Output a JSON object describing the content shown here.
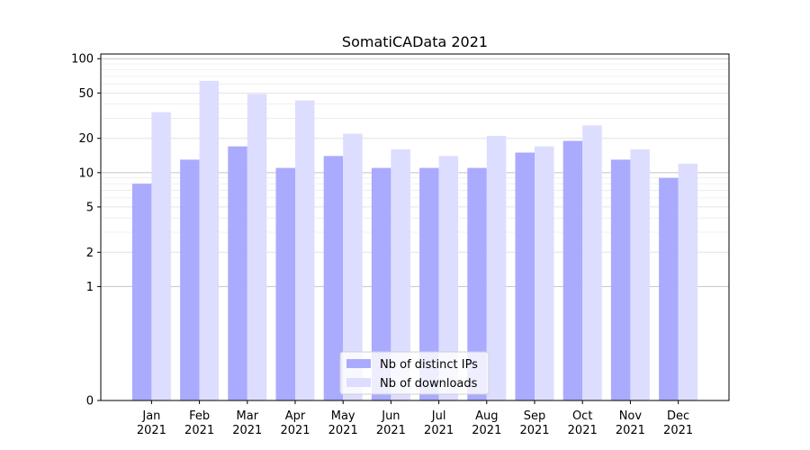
{
  "chart_data": {
    "type": "bar",
    "title": "SomatiCAData 2021",
    "xlabel": "",
    "ylabel": "",
    "y_scale": "symlog",
    "ylim": [
      0,
      110
    ],
    "yticks": [
      0,
      1,
      2,
      5,
      10,
      20,
      50,
      100
    ],
    "ytick_labels": [
      "0",
      "1",
      "2",
      "5",
      "10",
      "20",
      "50",
      "100"
    ],
    "grid": true,
    "legend_position": "bottom-center",
    "categories": [
      "Jan\n2021",
      "Feb\n2021",
      "Mar\n2021",
      "Apr\n2021",
      "May\n2021",
      "Jun\n2021",
      "Jul\n2021",
      "Aug\n2021",
      "Sep\n2021",
      "Oct\n2021",
      "Nov\n2021",
      "Dec\n2021"
    ],
    "series": [
      {
        "name": "Nb of distinct IPs",
        "color": "#aaaaff",
        "values": [
          8,
          13,
          17,
          11,
          14,
          11,
          11,
          11,
          15,
          19,
          13,
          9
        ]
      },
      {
        "name": "Nb of downloads",
        "color": "#ddddff",
        "values": [
          34,
          64,
          49,
          43,
          22,
          16,
          14,
          21,
          17,
          26,
          16,
          12
        ]
      }
    ]
  }
}
